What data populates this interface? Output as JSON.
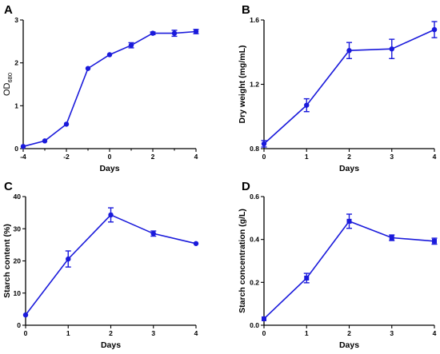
{
  "colors": {
    "series": "#1a1adb",
    "axis": "#000000"
  },
  "chart_data": [
    {
      "panel": "A",
      "type": "line",
      "xlabel": "Days",
      "ylabel_main": "OD",
      "ylabel_sub": "680",
      "xlim": [
        -4,
        4
      ],
      "ylim": [
        0,
        3
      ],
      "xticks": [
        -4,
        -2,
        0,
        2,
        4
      ],
      "yticks": [
        0,
        1,
        2,
        3
      ],
      "marker": "circle",
      "x": [
        -4,
        -3,
        -2,
        -1,
        0,
        1,
        2,
        3,
        4
      ],
      "y": [
        0.05,
        0.18,
        0.57,
        1.87,
        2.19,
        2.41,
        2.69,
        2.69,
        2.73
      ],
      "err": [
        0,
        0,
        0,
        0,
        0,
        0.06,
        0.03,
        0.07,
        0.05
      ]
    },
    {
      "panel": "B",
      "type": "line",
      "xlabel": "Days",
      "ylabel": "Dry weight  (mg/mL)",
      "xlim": [
        0,
        4
      ],
      "ylim": [
        0.8,
        1.6
      ],
      "xticks": [
        0,
        1,
        2,
        3,
        4
      ],
      "yticks": [
        0.8,
        1.2,
        1.6
      ],
      "marker": "circle",
      "x": [
        0,
        1,
        2,
        3,
        4
      ],
      "y": [
        0.83,
        1.07,
        1.41,
        1.42,
        1.54
      ],
      "err": [
        0.02,
        0.04,
        0.05,
        0.06,
        0.05
      ]
    },
    {
      "panel": "C",
      "type": "line",
      "xlabel": "Days",
      "ylabel": "Starch content (%)",
      "xlim": [
        0,
        4
      ],
      "ylim": [
        0,
        40
      ],
      "xticks": [
        0,
        1,
        2,
        3,
        4
      ],
      "yticks": [
        0,
        10,
        20,
        30,
        40
      ],
      "marker": "circle",
      "x": [
        0,
        1,
        2,
        3,
        4
      ],
      "y": [
        3.2,
        20.6,
        34.3,
        28.5,
        25.4
      ],
      "err": [
        0,
        2.5,
        2.2,
        0.8,
        0
      ]
    },
    {
      "panel": "D",
      "type": "line",
      "xlabel": "Days",
      "ylabel": "Starch concentration (g/L)",
      "xlim": [
        0,
        4
      ],
      "ylim": [
        0,
        0.6
      ],
      "xticks": [
        0,
        1,
        2,
        3,
        4
      ],
      "yticks": [
        0.0,
        0.2,
        0.4,
        0.6
      ],
      "yticklabels": [
        "0.0",
        "0.2",
        "0.4",
        "0.6"
      ],
      "marker": "square",
      "x": [
        0,
        1,
        2,
        3,
        4
      ],
      "y": [
        0.03,
        0.22,
        0.485,
        0.408,
        0.392
      ],
      "err": [
        0,
        0.022,
        0.033,
        0.013,
        0.014
      ]
    }
  ]
}
